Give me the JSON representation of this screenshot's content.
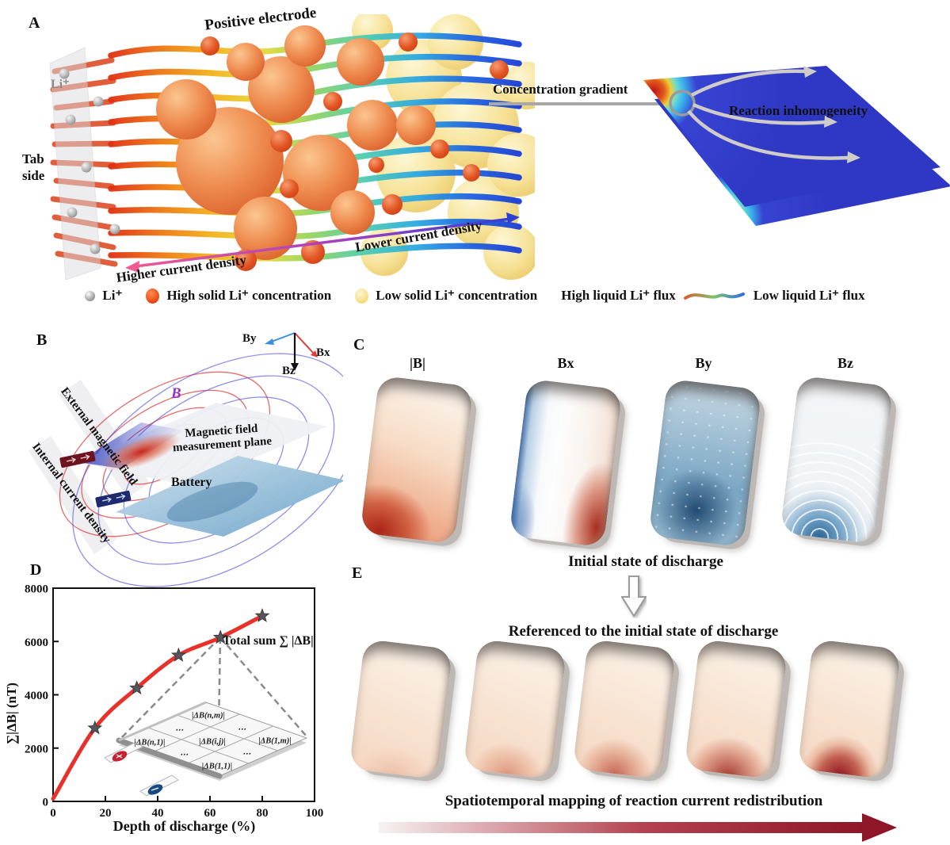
{
  "panel_a": {
    "label": "A",
    "title": "Positive electrode",
    "tab_side": "Tab side",
    "li_ion": "Li⁺",
    "higher_current": "Higher current density",
    "lower_current": "Lower current density",
    "concentration_gradient": "Concentration gradient",
    "reaction_inhomogeneity": "Reaction inhomogeneity"
  },
  "legend": {
    "li": "Li⁺",
    "high_solid": "High solid Li⁺ concentration",
    "low_solid": "Low solid Li⁺ concentration",
    "high_flux": "High liquid Li⁺ flux",
    "low_flux": "Low liquid Li⁺ flux"
  },
  "panel_b": {
    "label": "B",
    "axis_by": "By",
    "axis_bx": "Bx",
    "axis_bz": "Bz",
    "b_vector": "B⃗",
    "external_field": "External magnetic field",
    "internal_current": "Internal current density",
    "measurement_plane": "Magnetic field measurement plane",
    "battery": "Battery"
  },
  "panel_c": {
    "label": "C",
    "map_titles": [
      "|B|",
      "Bx",
      "By",
      "Bz"
    ],
    "caption": "Initial state of discharge"
  },
  "panel_d": {
    "label": "D",
    "annotation": "Total sum ∑ |ΔB|",
    "cells": {
      "nm": "|ΔB(n,m)|",
      "n1": "|ΔB(n,1)|",
      "ij": "|ΔB(i,j)|",
      "m1": "|ΔB(1,m)|",
      "c11": "|ΔB(1,1)|",
      "dots": "⋯"
    }
  },
  "panel_e": {
    "label": "E",
    "heading": "Referenced to the initial state of discharge",
    "caption": "Spatiotemporal mapping of reaction current redistribution"
  },
  "chart_data": {
    "type": "line",
    "x": [
      0,
      16,
      32,
      48,
      64,
      80
    ],
    "y": [
      100,
      2750,
      4250,
      5480,
      6150,
      6960
    ],
    "marker_indices": [
      1,
      2,
      3,
      4,
      5
    ],
    "marker": "star",
    "line_color": "#e8312a",
    "marker_color": "#56565c",
    "xlabel": "Depth of discharge (%)",
    "ylabel": "∑|ΔB| (nT)",
    "xlim": [
      0,
      100
    ],
    "ylim": [
      0,
      8000
    ],
    "xticks": [
      0,
      20,
      40,
      60,
      80,
      100
    ],
    "yticks": [
      0,
      2000,
      4000,
      6000,
      8000
    ],
    "grid": false,
    "legend_position": "none"
  },
  "colors": {
    "accent_red": "#e8312a",
    "dark_red_arrow": "#8e1627",
    "plane_blue": "#3340d0",
    "b_vector_purple": "#9633cc"
  }
}
